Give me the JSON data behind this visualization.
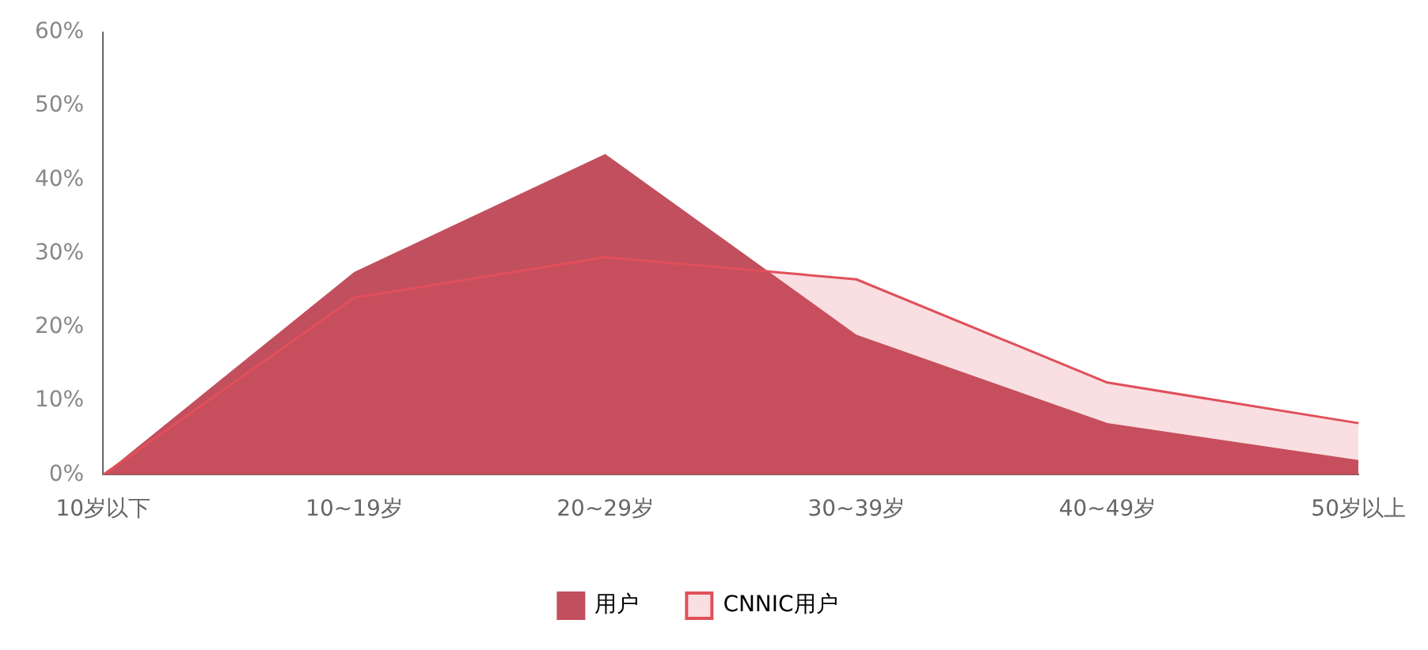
{
  "chart_data": {
    "type": "area",
    "categories": [
      "10岁以下",
      "10~19岁",
      "20~29岁",
      "30~39岁",
      "40~49岁",
      "50岁以上"
    ],
    "series": [
      {
        "name": "用户",
        "color": "#c24f5d",
        "values": [
          0,
          27.5,
          43.5,
          19,
          7,
          2
        ]
      },
      {
        "name": "CNNIC用户",
        "color": "#e0505a",
        "values": [
          0,
          24,
          29.5,
          26.5,
          12.5,
          7
        ]
      }
    ],
    "ylim": [
      0,
      60
    ],
    "yticks": [
      {
        "value": 0,
        "label": "0%"
      },
      {
        "value": 10,
        "label": "10%"
      },
      {
        "value": 20,
        "label": "20%"
      },
      {
        "value": 30,
        "label": "30%"
      },
      {
        "value": 40,
        "label": "40%"
      },
      {
        "value": 50,
        "label": "50%"
      },
      {
        "value": 60,
        "label": "60%"
      }
    ],
    "grid": false,
    "legend": "bottom"
  }
}
